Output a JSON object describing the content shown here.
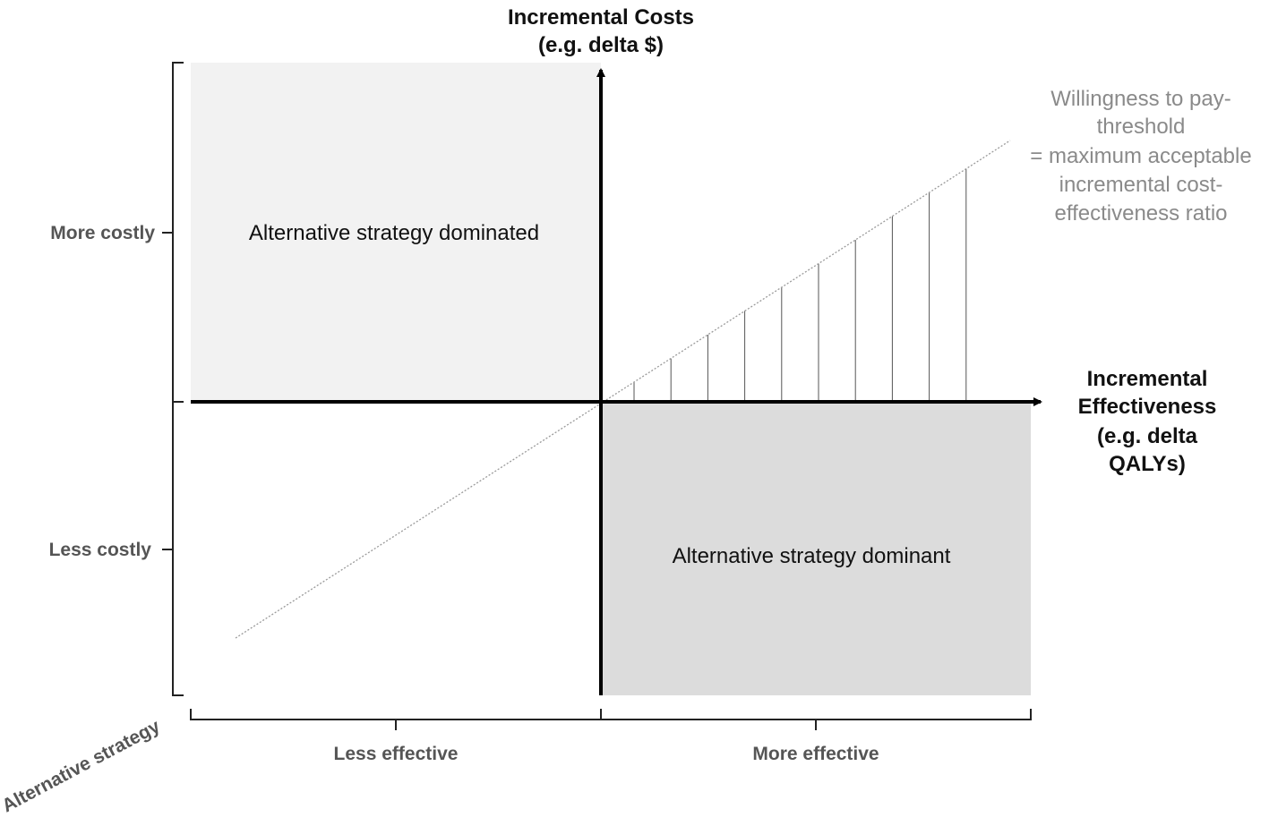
{
  "y_axis_title": {
    "line1": "Incremental Costs",
    "line2": "(e.g. delta $)"
  },
  "x_axis_title": {
    "line1": "Incremental",
    "line2": "Effectiveness",
    "line3": "(e.g. delta",
    "line4": "QALYs)"
  },
  "y_ticks": {
    "upper": "More costly",
    "lower": "Less costly"
  },
  "x_ticks": {
    "left": "Less effective",
    "right": "More effective"
  },
  "corner_label": "Alternative strategy",
  "quadrants": {
    "top_left": "Alternative strategy dominated",
    "bottom_right": "Alternative strategy dominant"
  },
  "wtp_label": {
    "line1": "Willingness to pay-",
    "line2": "threshold",
    "line3": "= maximum acceptable",
    "line4": "incremental cost-",
    "line5": "effectiveness ratio"
  },
  "colors": {
    "dominated_fill": "#f2f2f2",
    "dominant_fill": "#dcdcdc",
    "axis": "#000000",
    "threshold_line": "#9a9a9a"
  }
}
